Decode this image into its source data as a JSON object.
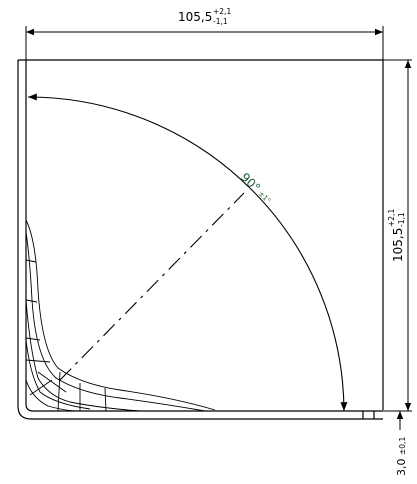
{
  "drawing": {
    "top_dimension": {
      "value": "105,5",
      "tol_upper": "+2,1",
      "tol_lower": "-1,1"
    },
    "right_dimension": {
      "value": "105,5",
      "tol_upper": "+2,1",
      "tol_lower": "-1,1"
    },
    "angle_dimension": {
      "value": "90°",
      "tolerance": "±1°"
    },
    "thickness_dimension": {
      "value": "3,0",
      "tolerance": "±0,1"
    }
  },
  "colors": {
    "line": "#000000",
    "angle_text": "#1f5f33",
    "background": "#ffffff"
  }
}
